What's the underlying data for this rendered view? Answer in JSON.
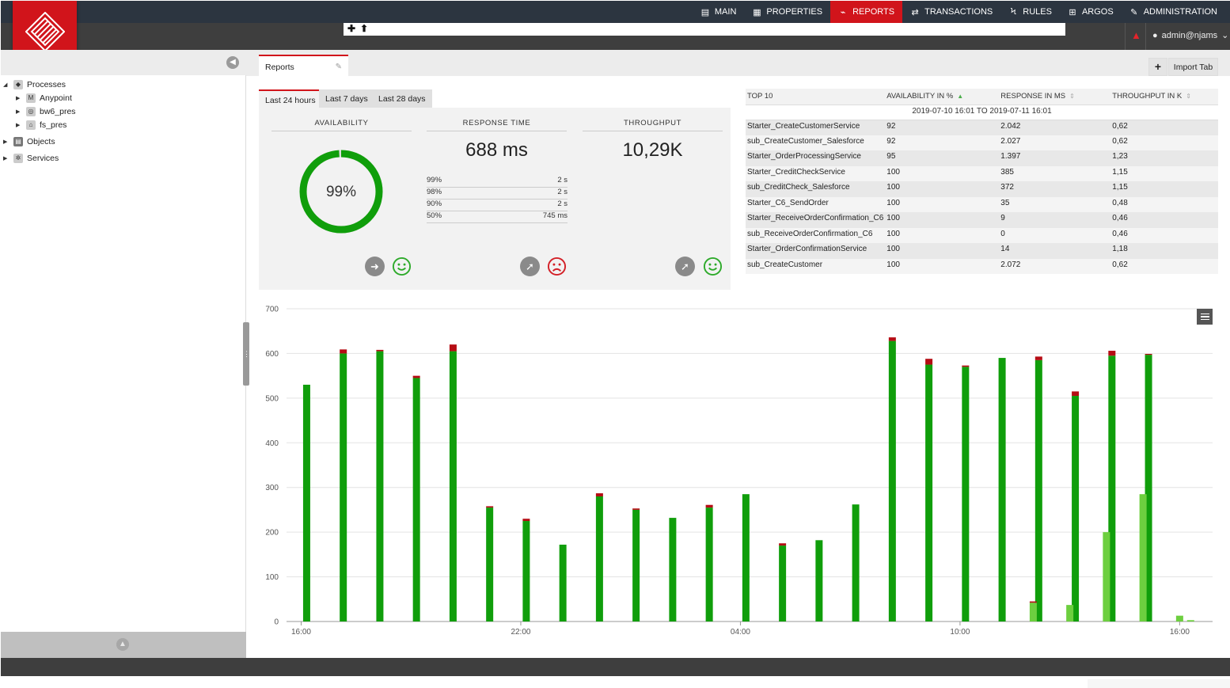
{
  "nav": {
    "items": [
      {
        "label": "MAIN",
        "icon": "dashboard-icon",
        "glyph": "▤",
        "active": false
      },
      {
        "label": "PROPERTIES",
        "icon": "list-icon",
        "glyph": "▦",
        "active": false
      },
      {
        "label": "REPORTS",
        "icon": "line-chart-icon",
        "glyph": "⌁",
        "active": true
      },
      {
        "label": "TRANSACTIONS",
        "icon": "exchange-icon",
        "glyph": "⇄",
        "active": false
      },
      {
        "label": "RULES",
        "icon": "bolt-icon",
        "glyph": "ϟ",
        "active": false
      },
      {
        "label": "ARGOS",
        "icon": "plus-square-icon",
        "glyph": "⊞",
        "active": false
      },
      {
        "label": "ADMINISTRATION",
        "icon": "wrench-icon",
        "glyph": "✎",
        "active": false
      }
    ],
    "user": "admin@njams"
  },
  "sidebar": {
    "tree": [
      {
        "label": "Processes",
        "icon": "processes-icon"
      },
      {
        "label": "Anypoint",
        "icon": "mulesoft-icon"
      },
      {
        "label": "bw6_pres",
        "icon": "tibco-icon"
      },
      {
        "label": "fs_pres",
        "icon": "home-icon"
      },
      {
        "label": "Objects",
        "icon": "objects-icon"
      },
      {
        "label": "Services",
        "icon": "gear-icon"
      }
    ]
  },
  "tabs": {
    "reports": "Reports",
    "import": "Import Tab"
  },
  "periods": [
    "Last 24 hours",
    "Last 7 days",
    "Last 28 days"
  ],
  "kpi": {
    "availability": {
      "title": "AVAILABILITY",
      "value": "99%",
      "fraction": 0.99
    },
    "response": {
      "title": "RESPONSE TIME",
      "value": "688 ms",
      "percentiles": [
        {
          "label": "99%",
          "value": "2 s"
        },
        {
          "label": "98%",
          "value": "2 s"
        },
        {
          "label": "90%",
          "value": "2 s"
        },
        {
          "label": "50%",
          "value": "745 ms"
        }
      ]
    },
    "throughput": {
      "title": "THROUGHPUT",
      "value": "10,29K"
    }
  },
  "top10": {
    "headers": [
      "TOP 10",
      "AVAILABILITY IN %",
      "RESPONSE IN MS",
      "THROUGHPUT IN K"
    ],
    "range": "2019-07-10 16:01 TO 2019-07-11 16:01",
    "rows": [
      [
        "Starter_CreateCustomerService",
        "92",
        "2.042",
        "0,62"
      ],
      [
        "sub_CreateCustomer_Salesforce",
        "92",
        "2.027",
        "0,62"
      ],
      [
        "Starter_OrderProcessingService",
        "95",
        "1.397",
        "1,23"
      ],
      [
        "Starter_CreditCheckService",
        "100",
        "385",
        "1,15"
      ],
      [
        "sub_CreditCheck_Salesforce",
        "100",
        "372",
        "1,15"
      ],
      [
        "Starter_C6_SendOrder",
        "100",
        "35",
        "0,48"
      ],
      [
        "Starter_ReceiveOrderConfirmation_C6",
        "100",
        "9",
        "0,46"
      ],
      [
        "sub_ReceiveOrderConfirmation_C6",
        "100",
        "0",
        "0,46"
      ],
      [
        "Starter_OrderConfirmationService",
        "100",
        "14",
        "1,18"
      ],
      [
        "sub_CreateCustomer",
        "100",
        "2.072",
        "0,62"
      ]
    ]
  },
  "colors": {
    "brand_red": "#d1141b",
    "success": "#109e0b",
    "error": "#b50d14",
    "partial": "#6dcf3f",
    "happy": "#2eaa2b",
    "sad": "#d32027"
  },
  "chart_data": {
    "type": "bar",
    "stacked": true,
    "ylim": [
      0,
      700
    ],
    "yticks": [
      0,
      100,
      200,
      300,
      400,
      500,
      600,
      700
    ],
    "xticks": [
      {
        "x": 0,
        "label": "16:00"
      },
      {
        "x": 6,
        "label": "22:00"
      },
      {
        "x": 12,
        "label": "04:00"
      },
      {
        "x": 18,
        "label": "10:00"
      },
      {
        "x": 24,
        "label": "16:00"
      }
    ],
    "xlim": [
      -0.4,
      24.9
    ],
    "series": [
      {
        "color": "#109e0b",
        "values": [
          [
            0.15,
            530
          ],
          [
            1.15,
            600
          ],
          [
            2.15,
            605
          ],
          [
            3.15,
            545
          ],
          [
            4.15,
            605
          ],
          [
            5.15,
            255
          ],
          [
            6.15,
            225
          ],
          [
            7.15,
            172
          ],
          [
            8.15,
            280
          ],
          [
            9.15,
            250
          ],
          [
            10.15,
            232
          ],
          [
            11.15,
            255
          ],
          [
            12.15,
            285
          ],
          [
            13.15,
            170
          ],
          [
            14.15,
            182
          ],
          [
            15.15,
            262
          ],
          [
            16.15,
            628
          ],
          [
            17.15,
            575
          ],
          [
            18.15,
            570
          ],
          [
            19.15,
            590
          ],
          [
            20.15,
            585
          ],
          [
            21.15,
            505
          ],
          [
            22.15,
            595
          ],
          [
            23.15,
            597
          ]
        ]
      },
      {
        "color": "#b50d14",
        "values": [
          [
            1.15,
            9
          ],
          [
            2.15,
            3
          ],
          [
            3.15,
            5
          ],
          [
            4.15,
            15
          ],
          [
            5.15,
            3
          ],
          [
            6.15,
            5
          ],
          [
            8.15,
            7
          ],
          [
            9.15,
            3
          ],
          [
            11.15,
            6
          ],
          [
            13.15,
            5
          ],
          [
            16.15,
            8
          ],
          [
            17.15,
            13
          ],
          [
            18.15,
            3
          ],
          [
            20.15,
            8
          ],
          [
            21.15,
            10
          ],
          [
            22.15,
            11
          ],
          [
            23.15,
            2
          ]
        ]
      },
      {
        "color": "#6dcf3f",
        "values": [
          [
            20.0,
            42
          ],
          [
            21.0,
            37
          ],
          [
            22.0,
            200
          ],
          [
            23.0,
            285
          ],
          [
            24.0,
            13
          ],
          [
            24.3,
            3
          ]
        ]
      }
    ],
    "overlay_red": [
      [
        20.0,
        3
      ]
    ]
  }
}
